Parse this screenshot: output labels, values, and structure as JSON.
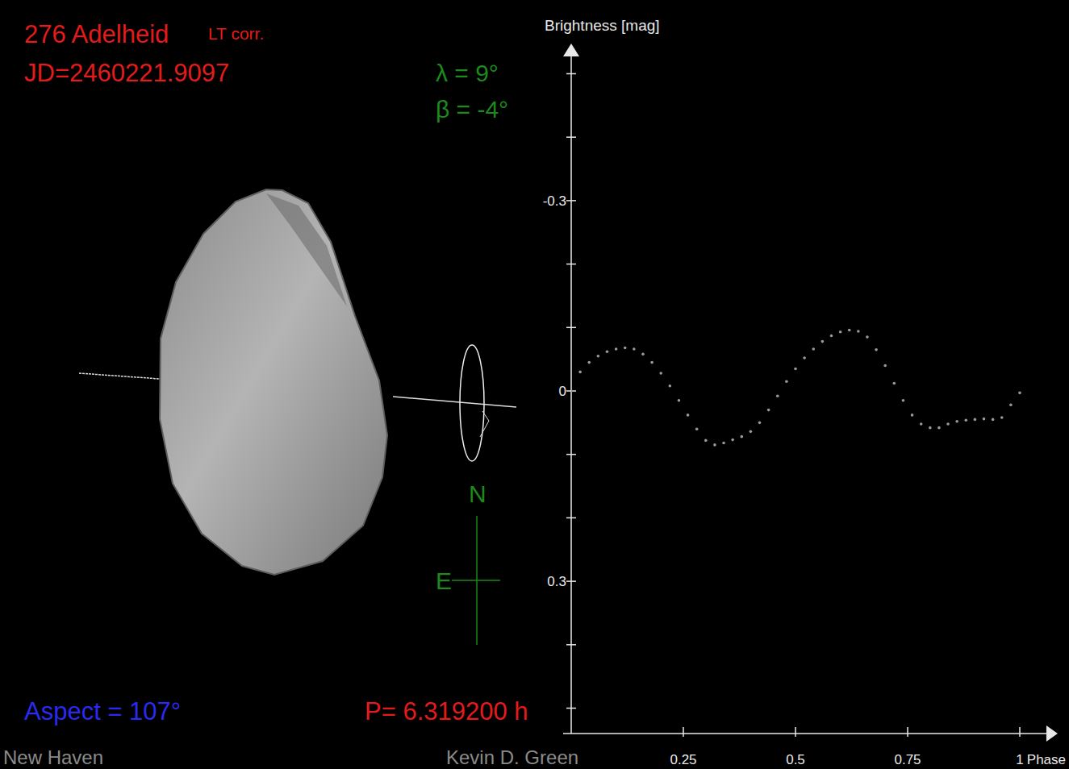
{
  "chart_data": {
    "type": "scatter",
    "y_label": "Brightness [mag]",
    "x_label": "Phase",
    "color": "#9a9a9a",
    "marker": "dot",
    "xlim": [
      0,
      1.07
    ],
    "ylim": [
      -0.54,
      0.54
    ],
    "xticks": [
      0.25,
      0.5,
      0.75,
      1
    ],
    "yticks": [
      -0.3,
      0,
      0.3
    ],
    "yticks_minor": [
      -0.5,
      -0.4,
      -0.2,
      -0.1,
      0.1,
      0.2,
      0.4,
      0.5
    ],
    "x": [
      0,
      0.02,
      0.04,
      0.06,
      0.08,
      0.1,
      0.12,
      0.14,
      0.16,
      0.18,
      0.2,
      0.22,
      0.24,
      0.26,
      0.28,
      0.3,
      0.32,
      0.34,
      0.36,
      0.38,
      0.4,
      0.42,
      0.44,
      0.46,
      0.48,
      0.5,
      0.52,
      0.54,
      0.56,
      0.58,
      0.6,
      0.62,
      0.64,
      0.66,
      0.68,
      0.7,
      0.72,
      0.74,
      0.76,
      0.78,
      0.8,
      0.82,
      0.84,
      0.86,
      0.88,
      0.9,
      0.92,
      0.94,
      0.96,
      0.98,
      1.0
    ],
    "values": [
      0.0,
      -0.03,
      -0.045,
      -0.055,
      -0.062,
      -0.066,
      -0.068,
      -0.066,
      -0.058,
      -0.045,
      -0.028,
      -0.008,
      0.015,
      0.038,
      0.06,
      0.078,
      0.085,
      0.082,
      0.077,
      0.072,
      0.064,
      0.05,
      0.03,
      0.008,
      -0.015,
      -0.035,
      -0.052,
      -0.066,
      -0.078,
      -0.087,
      -0.093,
      -0.096,
      -0.094,
      -0.085,
      -0.065,
      -0.04,
      -0.012,
      0.015,
      0.038,
      0.052,
      0.058,
      0.058,
      0.052,
      0.048,
      0.046,
      0.045,
      0.044,
      0.045,
      0.042,
      0.022,
      0.003
    ],
    "annotations": {
      "object": "276 Adelheid",
      "lt_correction": "LT corr.",
      "jd": "JD=2460221.9097",
      "lambda": "λ =  9°",
      "beta": "β = -4°",
      "aspect": "Aspect = 107°",
      "period": "P= 6.319200 h",
      "compass_n": "N",
      "compass_e": "E",
      "location": "New Haven",
      "author": "Kevin D. Green"
    }
  }
}
